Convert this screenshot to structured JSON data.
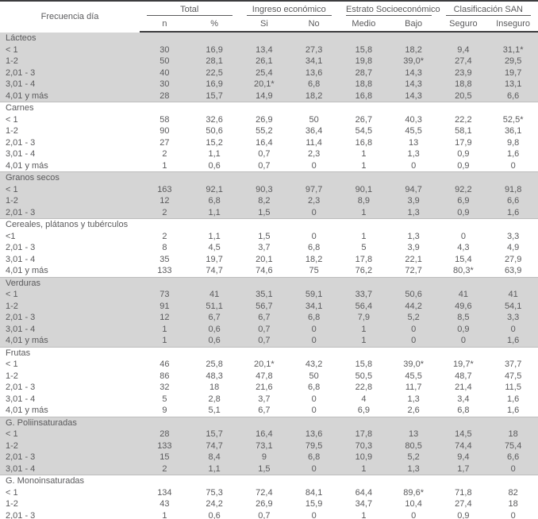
{
  "colors": {
    "section_shade": "#d5d5d5",
    "text": "#5a5a5c",
    "rule_dark": "#3c3c3e",
    "rule_light": "#bdbdbd",
    "background": "#ffffff"
  },
  "chart_data": {
    "type": "table",
    "title": "",
    "row_header": "Frecuencia día",
    "column_groups": [
      {
        "label": "Total",
        "subcols": [
          "n",
          "%"
        ]
      },
      {
        "label": "Ingreso económico",
        "subcols": [
          "Si",
          "No"
        ]
      },
      {
        "label": "Estrato Socioeconómico",
        "subcols": [
          "Medio",
          "Bajo"
        ]
      },
      {
        "label": "Clasificación SAN",
        "subcols": [
          "Seguro",
          "Inseguro"
        ]
      }
    ],
    "sub_columns": [
      "n",
      "%",
      "Si",
      "No",
      "Medio",
      "Bajo",
      "Seguro",
      "Inseguro"
    ],
    "sections": [
      {
        "name": "Lácteos",
        "shaded": true,
        "rows": [
          {
            "label": "< 1",
            "values": [
              "30",
              "16,9",
              "13,4",
              "27,3",
              "15,8",
              "18,2",
              "9,4",
              "31,1*"
            ]
          },
          {
            "label": "1-2",
            "values": [
              "50",
              "28,1",
              "26,1",
              "34,1",
              "19,8",
              "39,0*",
              "27,4",
              "29,5"
            ]
          },
          {
            "label": "2,01 - 3",
            "values": [
              "40",
              "22,5",
              "25,4",
              "13,6",
              "28,7",
              "14,3",
              "23,9",
              "19,7"
            ]
          },
          {
            "label": "3,01 - 4",
            "values": [
              "30",
              "16,9",
              "20,1*",
              "6,8",
              "18,8",
              "14,3",
              "18,8",
              "13,1"
            ]
          },
          {
            "label": "4,01 y más",
            "values": [
              "28",
              "15,7",
              "14,9",
              "18,2",
              "16,8",
              "14,3",
              "20,5",
              "6,6"
            ]
          }
        ]
      },
      {
        "name": "Carnes",
        "shaded": false,
        "rows": [
          {
            "label": "< 1",
            "values": [
              "58",
              "32,6",
              "26,9",
              "50",
              "26,7",
              "40,3",
              "22,2",
              "52,5*"
            ]
          },
          {
            "label": "1-2",
            "values": [
              "90",
              "50,6",
              "55,2",
              "36,4",
              "54,5",
              "45,5",
              "58,1",
              "36,1"
            ]
          },
          {
            "label": "2,01 - 3",
            "values": [
              "27",
              "15,2",
              "16,4",
              "11,4",
              "16,8",
              "13",
              "17,9",
              "9,8"
            ]
          },
          {
            "label": "3,01 - 4",
            "values": [
              "2",
              "1,1",
              "0,7",
              "2,3",
              "1",
              "1,3",
              "0,9",
              "1,6"
            ]
          },
          {
            "label": "4,01 y más",
            "values": [
              "1",
              "0,6",
              "0,7",
              "0",
              "1",
              "0",
              "0,9",
              "0"
            ]
          }
        ]
      },
      {
        "name": "Granos secos",
        "shaded": true,
        "rows": [
          {
            "label": "< 1",
            "values": [
              "163",
              "92,1",
              "90,3",
              "97,7",
              "90,1",
              "94,7",
              "92,2",
              "91,8"
            ]
          },
          {
            "label": "1-2",
            "values": [
              "12",
              "6,8",
              "8,2",
              "2,3",
              "8,9",
              "3,9",
              "6,9",
              "6,6"
            ]
          },
          {
            "label": "2,01 - 3",
            "values": [
              "2",
              "1,1",
              "1,5",
              "0",
              "1",
              "1,3",
              "0,9",
              "1,6"
            ]
          }
        ]
      },
      {
        "name": "Cereales, plátanos y tubérculos",
        "shaded": false,
        "rows": [
          {
            "label": "<1",
            "values": [
              "2",
              "1,1",
              "1,5",
              "0",
              "1",
              "1,3",
              "0",
              "3,3"
            ]
          },
          {
            "label": "2,01 - 3",
            "values": [
              "8",
              "4,5",
              "3,7",
              "6,8",
              "5",
              "3,9",
              "4,3",
              "4,9"
            ]
          },
          {
            "label": "3,01 - 4",
            "values": [
              "35",
              "19,7",
              "20,1",
              "18,2",
              "17,8",
              "22,1",
              "15,4",
              "27,9"
            ]
          },
          {
            "label": "4,01 y más",
            "values": [
              "133",
              "74,7",
              "74,6",
              "75",
              "76,2",
              "72,7",
              "80,3*",
              "63,9"
            ]
          }
        ]
      },
      {
        "name": "Verduras",
        "shaded": true,
        "rows": [
          {
            "label": "< 1",
            "values": [
              "73",
              "41",
              "35,1",
              "59,1",
              "33,7",
              "50,6",
              "41",
              "41"
            ]
          },
          {
            "label": "1-2",
            "values": [
              "91",
              "51,1",
              "56,7",
              "34,1",
              "56,4",
              "44,2",
              "49,6",
              "54,1"
            ]
          },
          {
            "label": "2,01 - 3",
            "values": [
              "12",
              "6,7",
              "6,7",
              "6,8",
              "7,9",
              "5,2",
              "8,5",
              "3,3"
            ]
          },
          {
            "label": "3,01 - 4",
            "values": [
              "1",
              "0,6",
              "0,7",
              "0",
              "1",
              "0",
              "0,9",
              "0"
            ]
          },
          {
            "label": "4,01 y más",
            "values": [
              "1",
              "0,6",
              "0,7",
              "0",
              "1",
              "0",
              "0",
              "1,6"
            ]
          }
        ]
      },
      {
        "name": "Frutas",
        "shaded": false,
        "rows": [
          {
            "label": "< 1",
            "values": [
              "46",
              "25,8",
              "20,1*",
              "43,2",
              "15,8",
              "39,0*",
              "19,7*",
              "37,7"
            ]
          },
          {
            "label": "1-2",
            "values": [
              "86",
              "48,3",
              "47,8",
              "50",
              "50,5",
              "45,5",
              "48,7",
              "47,5"
            ]
          },
          {
            "label": "2,01 - 3",
            "values": [
              "32",
              "18",
              "21,6",
              "6,8",
              "22,8",
              "11,7",
              "21,4",
              "11,5"
            ]
          },
          {
            "label": "3,01 - 4",
            "values": [
              "5",
              "2,8",
              "3,7",
              "0",
              "4",
              "1,3",
              "3,4",
              "1,6"
            ]
          },
          {
            "label": "4,01 y más",
            "values": [
              "9",
              "5,1",
              "6,7",
              "0",
              "6,9",
              "2,6",
              "6,8",
              "1,6"
            ]
          }
        ]
      },
      {
        "name": "G. Poliinsaturadas",
        "shaded": true,
        "rows": [
          {
            "label": "< 1",
            "values": [
              "28",
              "15,7",
              "16,4",
              "13,6",
              "17,8",
              "13",
              "14,5",
              "18"
            ]
          },
          {
            "label": "1-2",
            "values": [
              "133",
              "74,7",
              "73,1",
              "79,5",
              "70,3",
              "80,5",
              "74,4",
              "75,4"
            ]
          },
          {
            "label": "2,01 - 3",
            "values": [
              "15",
              "8,4",
              "9",
              "6,8",
              "10,9",
              "5,2",
              "9,4",
              "6,6"
            ]
          },
          {
            "label": "3,01 - 4",
            "values": [
              "2",
              "1,1",
              "1,5",
              "0",
              "1",
              "1,3",
              "1,7",
              "0"
            ]
          }
        ]
      },
      {
        "name": "G. Monoinsaturadas",
        "shaded": false,
        "rows": [
          {
            "label": "< 1",
            "values": [
              "134",
              "75,3",
              "72,4",
              "84,1",
              "64,4",
              "89,6*",
              "71,8",
              "82"
            ]
          },
          {
            "label": "1-2",
            "values": [
              "43",
              "24,2",
              "26,9",
              "15,9",
              "34,7",
              "10,4",
              "27,4",
              "18"
            ]
          },
          {
            "label": "2,01 - 3",
            "values": [
              "1",
              "0,6",
              "0,7",
              "0",
              "1",
              "0",
              "0,9",
              "0"
            ]
          }
        ]
      }
    ]
  }
}
